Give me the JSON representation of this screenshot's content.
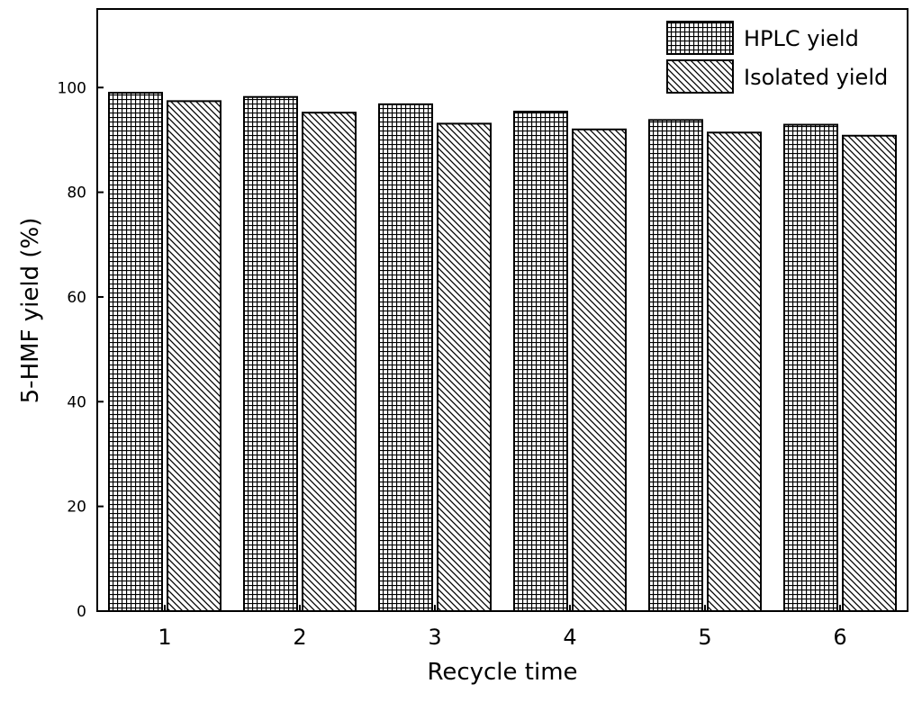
{
  "chart_data": {
    "type": "bar",
    "categories": [
      "1",
      "2",
      "3",
      "4",
      "5",
      "6"
    ],
    "series": [
      {
        "name": "HPLC yield",
        "values": [
          99.0,
          98.2,
          96.8,
          95.4,
          93.8,
          92.9
        ],
        "pattern": "grid"
      },
      {
        "name": "Isolated yield",
        "values": [
          97.4,
          95.2,
          93.1,
          92.0,
          91.4,
          90.8
        ],
        "pattern": "diagonal"
      }
    ],
    "xlabel": "Recycle time",
    "ylabel": "5-HMF yield (%)",
    "ylim": [
      0,
      115
    ],
    "yticks": [
      "0",
      "20",
      "40",
      "60",
      "80",
      "100"
    ],
    "grid": false,
    "legend_position": "top-right"
  }
}
